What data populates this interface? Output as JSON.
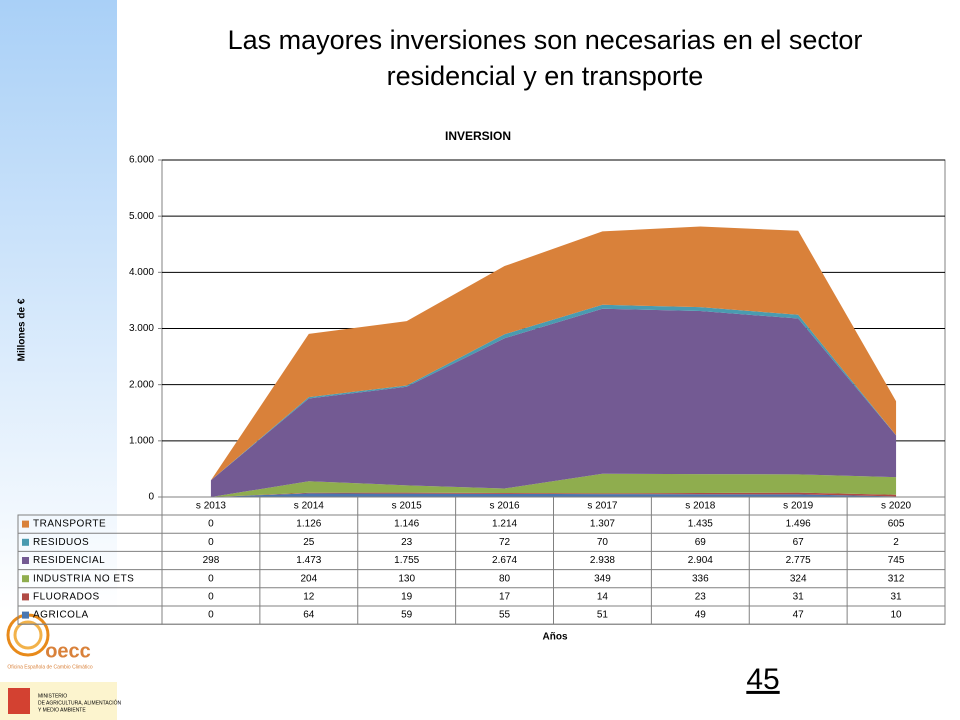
{
  "slide": {
    "title_lines": [
      "Las mayores inversiones son necesarias en el sector",
      "residencial y en transporte"
    ],
    "page_number": "45",
    "logo_text": "oecc",
    "logo_caption": "Oficina Española de Cambio Climático",
    "ministry": [
      "MINISTERIO",
      "DE AGRICULTURA, ALIMENTACIÓN",
      "Y MEDIO AMBIENTE"
    ]
  },
  "chart_data": {
    "type": "stacked-area",
    "title": "INVERSION",
    "ylabel": "Millones de €",
    "xlabel": "Años",
    "categories": [
      "s 2013",
      "s 2014",
      "s 2015",
      "s 2016",
      "s 2017",
      "s 2018",
      "s 2019",
      "s 2020"
    ],
    "ylim": [
      0,
      6000
    ],
    "yticks": [
      0,
      {
        "value": 1000,
        "label": "1.000"
      },
      {
        "value": 2000,
        "label": "2.000"
      },
      {
        "value": 3000,
        "label": "3.000"
      },
      {
        "value": 4000,
        "label": "4.000"
      },
      {
        "value": 5000,
        "label": "5.000"
      },
      {
        "value": 6000,
        "label": "6.000"
      }
    ],
    "grid": true,
    "series": [
      {
        "name": "AGRICOLA",
        "color": "#4a76b0",
        "values": [
          0,
          64,
          59,
          55,
          51,
          49,
          47,
          10
        ],
        "value_labels": [
          "0",
          "64",
          "59",
          "55",
          "51",
          "49",
          "47",
          "10"
        ]
      },
      {
        "name": "FLUORADOS",
        "color": "#b04a45",
        "values": [
          0,
          12,
          19,
          17,
          14,
          23,
          31,
          31
        ],
        "value_labels": [
          "0",
          "12",
          "19",
          "17",
          "14",
          "23",
          "31",
          "31"
        ]
      },
      {
        "name": "INDUSTRIA NO ETS",
        "color": "#8fad4e",
        "values": [
          0,
          204,
          130,
          80,
          349,
          336,
          324,
          312
        ],
        "value_labels": [
          "0",
          "204",
          "130",
          "80",
          "349",
          "336",
          "324",
          "312"
        ]
      },
      {
        "name": "RESIDENCIAL",
        "color": "#735a93",
        "values": [
          298,
          1473,
          1755,
          2674,
          2938,
          2904,
          2775,
          745
        ],
        "value_labels": [
          "298",
          "1.473",
          "1.755",
          "2.674",
          "2.938",
          "2.904",
          "2.775",
          "745"
        ]
      },
      {
        "name": "RESIDUOS",
        "color": "#4a9bb0",
        "values": [
          0,
          25,
          23,
          72,
          70,
          69,
          67,
          2
        ],
        "value_labels": [
          "0",
          "25",
          "23",
          "72",
          "70",
          "69",
          "67",
          "2"
        ]
      },
      {
        "name": "TRANSPORTE",
        "color": "#d9813a",
        "values": [
          0,
          1126,
          1146,
          1214,
          1307,
          1435,
          1496,
          605
        ],
        "value_labels": [
          "0",
          "1.126",
          "1.146",
          "1.214",
          "1.307",
          "1.435",
          "1.496",
          "605"
        ]
      }
    ]
  }
}
